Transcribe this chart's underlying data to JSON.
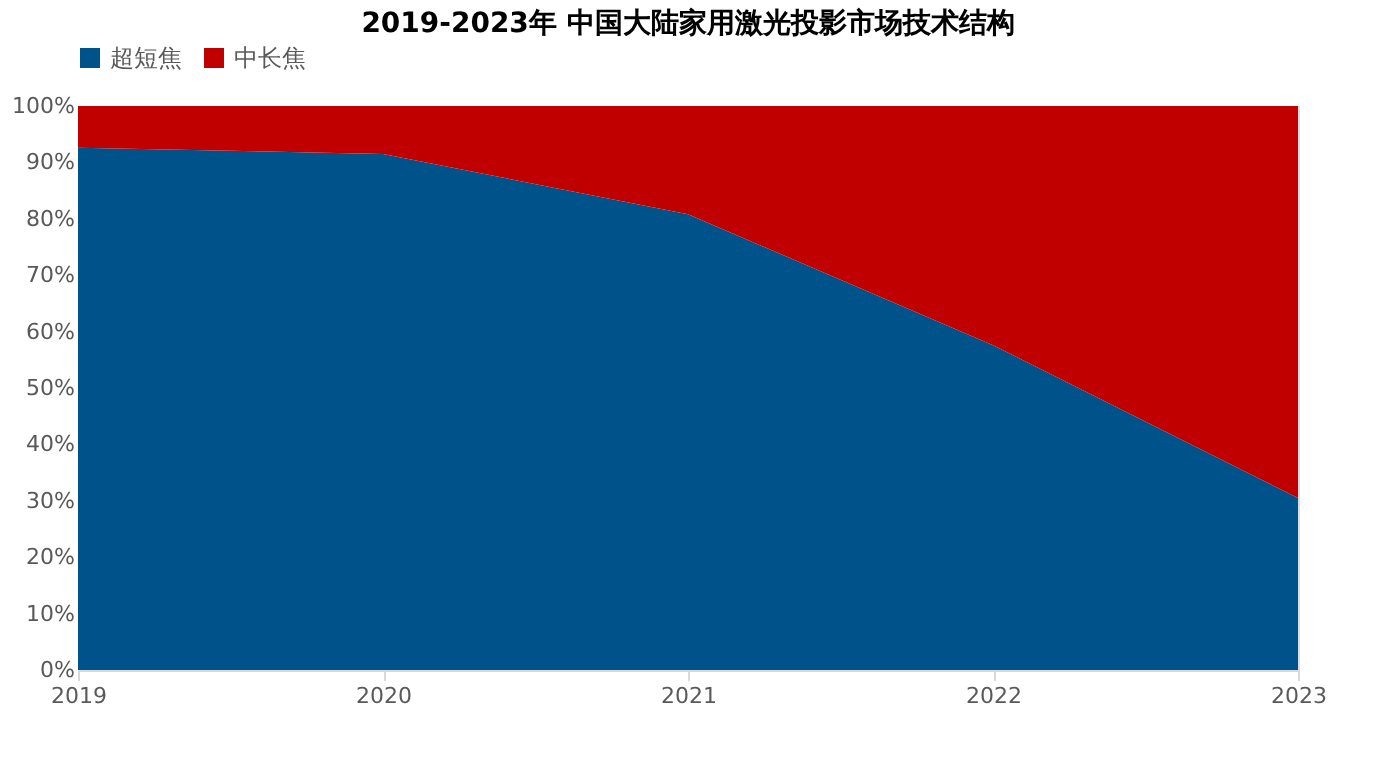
{
  "chart_data": {
    "type": "area",
    "title": "2019-2023年 中国大陆家用激光投影市场技术结构",
    "categories": [
      "2019",
      "2020",
      "2021",
      "2022",
      "2023"
    ],
    "stacked": true,
    "series": [
      {
        "name": "超短焦",
        "color": "#00538a",
        "values": [
          92.6,
          91.5,
          80.8,
          57.6,
          30.5
        ]
      },
      {
        "name": "中长焦",
        "color": "#c00000",
        "values": [
          7.4,
          8.5,
          19.2,
          42.4,
          69.5
        ]
      }
    ],
    "ylim": [
      0,
      100
    ],
    "yticks": [
      {
        "value": 0,
        "label": "0%"
      },
      {
        "value": 10,
        "label": "10%"
      },
      {
        "value": 20,
        "label": "20%"
      },
      {
        "value": 30,
        "label": "30%"
      },
      {
        "value": 40,
        "label": "40%"
      },
      {
        "value": 50,
        "label": "50%"
      },
      {
        "value": 60,
        "label": "60%"
      },
      {
        "value": 70,
        "label": "70%"
      },
      {
        "value": 80,
        "label": "80%"
      },
      {
        "value": 90,
        "label": "90%"
      },
      {
        "value": 100,
        "label": "100%"
      }
    ],
    "grid": false,
    "legend": "top"
  }
}
